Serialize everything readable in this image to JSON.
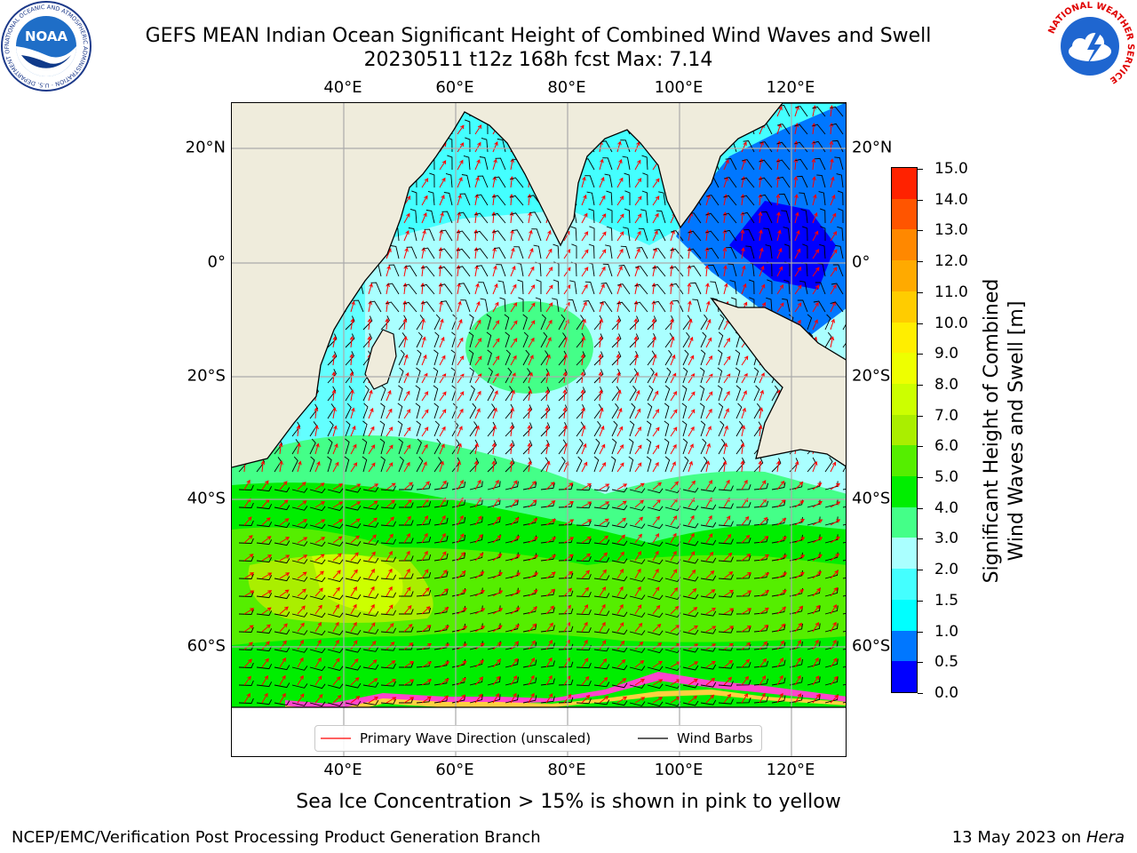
{
  "header": {
    "title_line1": "GEFS MEAN Indian Ocean Significant Height of Combined Wind Waves and Swell",
    "title_line2": "20230511 t12z 168h fcst   Max: 7.14"
  },
  "logos": {
    "noaa": {
      "text": "NOAA",
      "ring_text": "NATIONAL OCEANIC AND ATMOSPHERIC ADMINISTRATION · U.S. DEPARTMENT OF COMMERCE"
    },
    "nws": {
      "ring_text": "NATIONAL WEATHER SERVICE"
    }
  },
  "map": {
    "lon_labels": [
      "40°E",
      "60°E",
      "80°E",
      "100°E",
      "120°E"
    ],
    "lat_labels_left": [
      "20°N",
      "0°",
      "20°S",
      "40°S",
      "60°S"
    ],
    "lat_labels_right": [
      "20°N",
      "0°",
      "20°S",
      "40°S",
      "60°S"
    ],
    "land_color": "#efecdc",
    "ice_colors": [
      "#ff44cc",
      "#ffd040"
    ],
    "arrow_color": "#ff0000",
    "barb_color": "#000000"
  },
  "colorbar": {
    "label_line1": "Significant Height of Combined",
    "label_line2": "Wind Waves and Swell [m]",
    "ticks": [
      "0.0",
      "0.5",
      "1.0",
      "1.5",
      "2.0",
      "3.0",
      "4.0",
      "5.0",
      "6.0",
      "7.0",
      "8.0",
      "9.0",
      "10.0",
      "11.0",
      "12.0",
      "13.0",
      "14.0",
      "15.0"
    ],
    "colors": [
      "#0000ff",
      "#0077ff",
      "#00ffff",
      "#44ffff",
      "#aaffff",
      "#44ff88",
      "#00ee00",
      "#55ee00",
      "#aaee00",
      "#ccff00",
      "#eeff00",
      "#ffee00",
      "#ffcc00",
      "#ffaa00",
      "#ff8800",
      "#ff5500",
      "#ff2200"
    ]
  },
  "legend": {
    "wave_label": "Primary Wave Direction (unscaled)",
    "barb_label": "Wind Barbs"
  },
  "footer": {
    "note": "Sea Ice Concentration > 15% is shown in pink to yellow",
    "left": "NCEP/EMC/Verification Post Processing Product Generation Branch",
    "right_date": "13 May 2023 on",
    "right_machine": "Hera"
  }
}
